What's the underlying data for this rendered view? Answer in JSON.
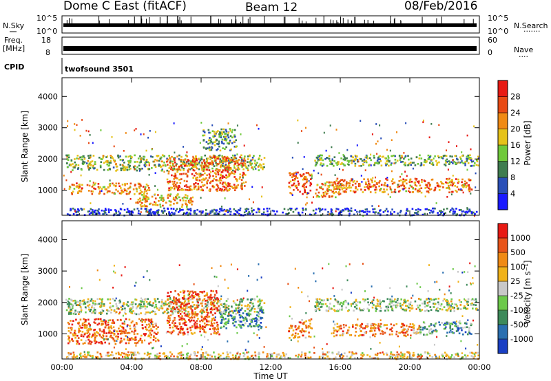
{
  "header": {
    "radar_title": "Dome C East (fitACF)",
    "beam": "Beam 12",
    "date": "08/Feb/2016"
  },
  "panels": {
    "nsky": {
      "label": "N.Sky",
      "ticks_left": [
        "10^5",
        "10^0"
      ],
      "right_label": "N.Search",
      "ticks_right": [
        "10^5",
        "10^0"
      ],
      "right_dots": "·······"
    },
    "freq": {
      "label_line1": "Freq.",
      "label_line2": "[MHz]",
      "ticks_left": [
        "18",
        "8"
      ],
      "right_label": "Nave",
      "ticks_right": [
        "60",
        "0"
      ],
      "right_dots": "····"
    },
    "cpid": {
      "label": "CPID",
      "program": "twofsound 3501"
    }
  },
  "chart_data": [
    {
      "type": "heatmap",
      "name": "power",
      "ylabel": "Slant Range [km]",
      "xlabel": "",
      "ylim": [
        200,
        4600
      ],
      "xlim": [
        0,
        24
      ],
      "y_ticks": [
        "1000",
        "2000",
        "3000",
        "4000"
      ],
      "x_ticks": [
        "00:00",
        "04:00",
        "08:00",
        "12:00",
        "16:00",
        "20:00",
        "00:00"
      ],
      "colorbar": {
        "label": "Power [dB]",
        "ticks": [
          "4",
          "8",
          "12",
          "16",
          "20",
          "24",
          "28"
        ],
        "colors": [
          "#1a1aff",
          "#2a4fb8",
          "#3f7c4f",
          "#6fc93a",
          "#e6c21a",
          "#f08a14",
          "#e84a14",
          "#e81a14"
        ]
      },
      "bands": [
        {
          "x": [
            0.2,
            11.6
          ],
          "range": [
            1650,
            2150
          ],
          "level": 0.45
        },
        {
          "x": [
            0.3,
            5.0
          ],
          "range": [
            900,
            1250
          ],
          "level": 0.7
        },
        {
          "x": [
            6.0,
            10.5
          ],
          "range": [
            1000,
            2100
          ],
          "level": 0.75
        },
        {
          "x": [
            4.2,
            7.5
          ],
          "range": [
            500,
            900
          ],
          "level": 0.6
        },
        {
          "x": [
            8.0,
            10.0
          ],
          "range": [
            2300,
            3000
          ],
          "level": 0.35
        },
        {
          "x": [
            13.0,
            14.3
          ],
          "range": [
            900,
            1600
          ],
          "level": 0.8
        },
        {
          "x": [
            14.5,
            23.9
          ],
          "range": [
            1800,
            2150
          ],
          "level": 0.4
        },
        {
          "x": [
            15.5,
            23.5
          ],
          "range": [
            950,
            1400
          ],
          "level": 0.72
        },
        {
          "x": [
            14.5,
            16.0
          ],
          "range": [
            800,
            1300
          ],
          "level": 0.65
        },
        {
          "x": [
            0.2,
            23.9
          ],
          "range": [
            220,
            450
          ],
          "level": 0.15
        }
      ]
    },
    {
      "type": "heatmap",
      "name": "velocity",
      "ylabel": "Slant Range [km]",
      "xlabel": "Time UT",
      "ylim": [
        200,
        4600
      ],
      "xlim": [
        0,
        24
      ],
      "y_ticks": [
        "1000",
        "2000",
        "3000",
        "4000"
      ],
      "x_ticks": [
        "00:00",
        "04:00",
        "08:00",
        "12:00",
        "16:00",
        "20:00",
        "00:00"
      ],
      "colorbar": {
        "label": "Velocity [m s⁻¹]",
        "ticks": [
          "1000",
          "500",
          "100",
          "25",
          "-25",
          "-100",
          "-500",
          "-1000"
        ],
        "colors": [
          "#1a3fc4",
          "#2a6fb0",
          "#3d8a5a",
          "#6cc94a",
          "#c8c8c8",
          "#f0b21a",
          "#f08a14",
          "#e8541a",
          "#e81a14"
        ]
      },
      "bands": [
        {
          "x": [
            0.2,
            11.6
          ],
          "range": [
            1650,
            2150
          ],
          "level": 0.45
        },
        {
          "x": [
            0.3,
            5.5
          ],
          "range": [
            700,
            1500
          ],
          "level": 0.78
        },
        {
          "x": [
            6.0,
            9.0
          ],
          "range": [
            1000,
            2400
          ],
          "level": 0.85
        },
        {
          "x": [
            9.0,
            11.5
          ],
          "range": [
            1200,
            1800
          ],
          "level": 0.25
        },
        {
          "x": [
            13.0,
            14.3
          ],
          "range": [
            900,
            1500
          ],
          "level": 0.75
        },
        {
          "x": [
            14.5,
            23.9
          ],
          "range": [
            1750,
            2150
          ],
          "level": 0.45
        },
        {
          "x": [
            15.5,
            20.5
          ],
          "range": [
            950,
            1350
          ],
          "level": 0.72
        },
        {
          "x": [
            20.5,
            23.5
          ],
          "range": [
            1000,
            1400
          ],
          "level": 0.3
        },
        {
          "x": [
            0.2,
            23.9
          ],
          "range": [
            220,
            450
          ],
          "level": 0.6
        }
      ]
    }
  ]
}
